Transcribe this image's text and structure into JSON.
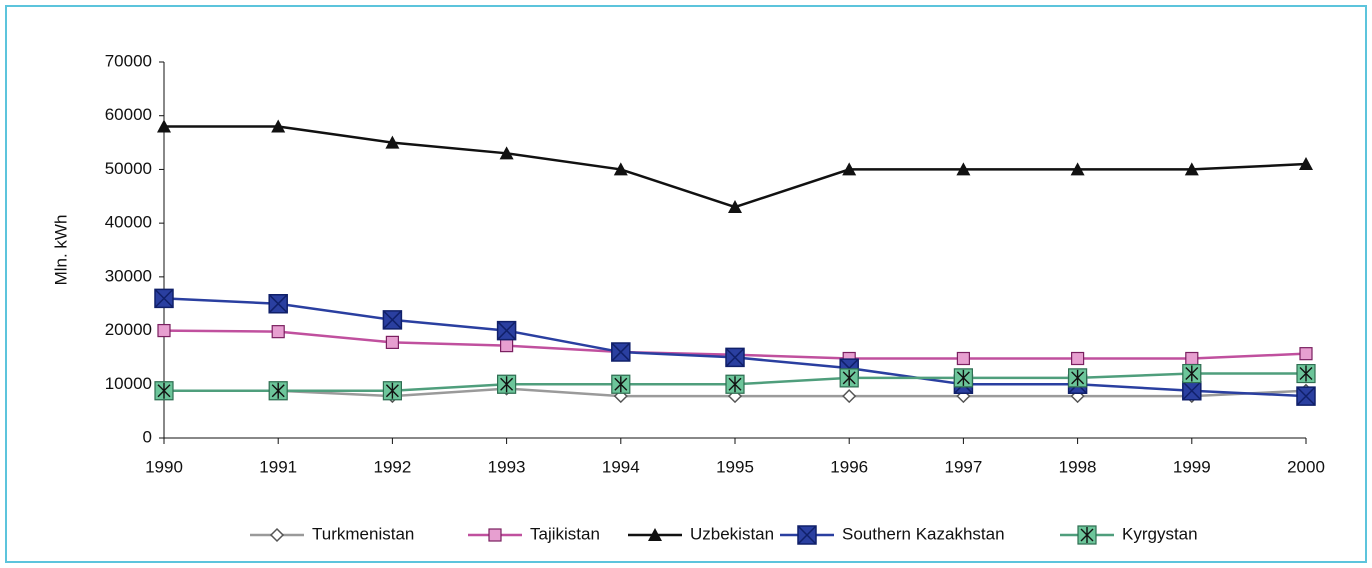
{
  "chart_data": {
    "type": "line",
    "y_label": "Mln. kWh",
    "categories": [
      "1990",
      "1991",
      "1992",
      "1993",
      "1994",
      "1995",
      "1996",
      "1997",
      "1998",
      "1999",
      "2000"
    ],
    "ylim": [
      0,
      70000
    ],
    "yticks": [
      0,
      10000,
      20000,
      30000,
      40000,
      50000,
      60000,
      70000
    ],
    "series": [
      {
        "name": "Turkmenistan",
        "color": "#9a9a9a",
        "marker": "diamond",
        "values": [
          8800,
          8800,
          7800,
          9200,
          7800,
          7800,
          7800,
          7800,
          7800,
          7800,
          8800
        ]
      },
      {
        "name": "Tajikistan",
        "color": "#c0509e",
        "marker": "square",
        "values": [
          20000,
          19800,
          17800,
          17200,
          16000,
          15500,
          14800,
          14800,
          14800,
          14800,
          15700
        ]
      },
      {
        "name": "Uzbekistan",
        "color": "#111111",
        "marker": "triangle",
        "values": [
          58000,
          58000,
          55000,
          53000,
          50000,
          43000,
          50000,
          50000,
          50000,
          50000,
          51000
        ]
      },
      {
        "name": "Southern Kazakhstan",
        "color": "#2a3fa0",
        "marker": "xsquare",
        "values": [
          26000,
          25000,
          22000,
          20000,
          16000,
          15000,
          13000,
          10000,
          10000,
          8800,
          7800
        ]
      },
      {
        "name": "Kyrgystan",
        "color": "#4f9e7c",
        "marker": "asterisk",
        "values": [
          8800,
          8800,
          8800,
          10000,
          10000,
          10000,
          11200,
          11200,
          11200,
          12000,
          12000
        ]
      }
    ]
  }
}
